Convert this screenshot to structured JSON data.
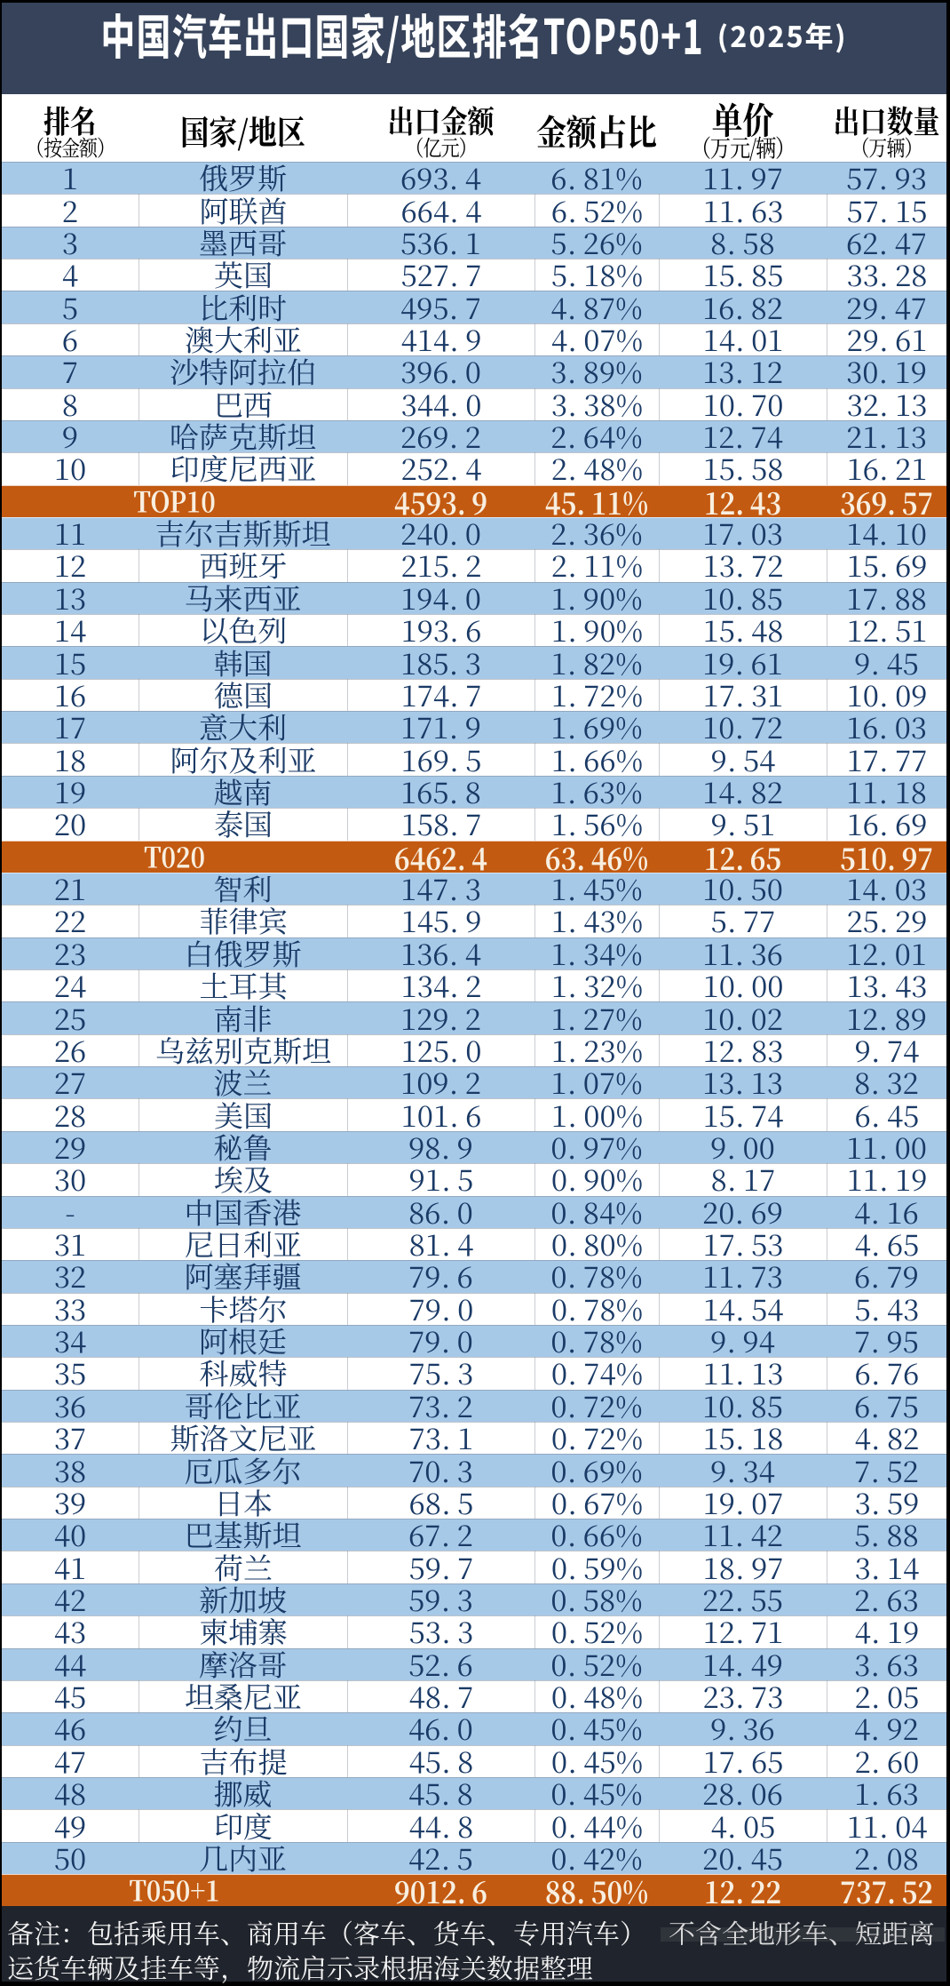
{
  "title": {
    "main": "中国汽车出口国家/地区排名TOP50+1",
    "year_suffix": "(2025年)"
  },
  "header": {
    "columns": [
      {
        "label": "排名",
        "sub": "（按金额）"
      },
      {
        "label": "国家/地区",
        "sub": ""
      },
      {
        "label": "出口金额",
        "sub": "（亿元）"
      },
      {
        "label": "金额占比",
        "sub": ""
      },
      {
        "label": "单价",
        "sub": "（万元/辆）"
      },
      {
        "label": "出口数量",
        "sub": "（万辆）"
      }
    ]
  },
  "rows": [
    {
      "type": "data",
      "rank": "1",
      "country": "俄罗斯",
      "amount": "693.4",
      "share": "6.81%",
      "price": "11.97",
      "qty": "57.93"
    },
    {
      "type": "data",
      "rank": "2",
      "country": "阿联酋",
      "amount": "664.4",
      "share": "6.52%",
      "price": "11.63",
      "qty": "57.15"
    },
    {
      "type": "data",
      "rank": "3",
      "country": "墨西哥",
      "amount": "536.1",
      "share": "5.26%",
      "price": "8.58",
      "qty": "62.47"
    },
    {
      "type": "data",
      "rank": "4",
      "country": "英国",
      "amount": "527.7",
      "share": "5.18%",
      "price": "15.85",
      "qty": "33.28"
    },
    {
      "type": "data",
      "rank": "5",
      "country": "比利时",
      "amount": "495.7",
      "share": "4.87%",
      "price": "16.82",
      "qty": "29.47"
    },
    {
      "type": "data",
      "rank": "6",
      "country": "澳大利亚",
      "amount": "414.9",
      "share": "4.07%",
      "price": "14.01",
      "qty": "29.61"
    },
    {
      "type": "data",
      "rank": "7",
      "country": "沙特阿拉伯",
      "amount": "396.0",
      "share": "3.89%",
      "price": "13.12",
      "qty": "30.19"
    },
    {
      "type": "data",
      "rank": "8",
      "country": "巴西",
      "amount": "344.0",
      "share": "3.38%",
      "price": "10.70",
      "qty": "32.13"
    },
    {
      "type": "data",
      "rank": "9",
      "country": "哈萨克斯坦",
      "amount": "269.2",
      "share": "2.64%",
      "price": "12.74",
      "qty": "21.13"
    },
    {
      "type": "data",
      "rank": "10",
      "country": "印度尼西亚",
      "amount": "252.4",
      "share": "2.48%",
      "price": "15.58",
      "qty": "16.21"
    },
    {
      "type": "summary",
      "label": "TOP10",
      "amount": "4593.9",
      "share": "45.11%",
      "price": "12.43",
      "qty": "369.57"
    },
    {
      "type": "data",
      "rank": "11",
      "country": "吉尔吉斯斯坦",
      "amount": "240.0",
      "share": "2.36%",
      "price": "17.03",
      "qty": "14.10"
    },
    {
      "type": "data",
      "rank": "12",
      "country": "西班牙",
      "amount": "215.2",
      "share": "2.11%",
      "price": "13.72",
      "qty": "15.69"
    },
    {
      "type": "data",
      "rank": "13",
      "country": "马来西亚",
      "amount": "194.0",
      "share": "1.90%",
      "price": "10.85",
      "qty": "17.88"
    },
    {
      "type": "data",
      "rank": "14",
      "country": "以色列",
      "amount": "193.6",
      "share": "1.90%",
      "price": "15.48",
      "qty": "12.51"
    },
    {
      "type": "data",
      "rank": "15",
      "country": "韩国",
      "amount": "185.3",
      "share": "1.82%",
      "price": "19.61",
      "qty": "9.45"
    },
    {
      "type": "data",
      "rank": "16",
      "country": "德国",
      "amount": "174.7",
      "share": "1.72%",
      "price": "17.31",
      "qty": "10.09"
    },
    {
      "type": "data",
      "rank": "17",
      "country": "意大利",
      "amount": "171.9",
      "share": "1.69%",
      "price": "10.72",
      "qty": "16.03"
    },
    {
      "type": "data",
      "rank": "18",
      "country": "阿尔及利亚",
      "amount": "169.5",
      "share": "1.66%",
      "price": "9.54",
      "qty": "17.77"
    },
    {
      "type": "data",
      "rank": "19",
      "country": "越南",
      "amount": "165.8",
      "share": "1.63%",
      "price": "14.82",
      "qty": "11.18"
    },
    {
      "type": "data",
      "rank": "20",
      "country": "泰国",
      "amount": "158.7",
      "share": "1.56%",
      "price": "9.51",
      "qty": "16.69"
    },
    {
      "type": "summary",
      "label": "T020",
      "amount": "6462.4",
      "share": "63.46%",
      "price": "12.65",
      "qty": "510.97"
    },
    {
      "type": "data",
      "rank": "21",
      "country": "智利",
      "amount": "147.3",
      "share": "1.45%",
      "price": "10.50",
      "qty": "14.03"
    },
    {
      "type": "data",
      "rank": "22",
      "country": "菲律宾",
      "amount": "145.9",
      "share": "1.43%",
      "price": "5.77",
      "qty": "25.29"
    },
    {
      "type": "data",
      "rank": "23",
      "country": "白俄罗斯",
      "amount": "136.4",
      "share": "1.34%",
      "price": "11.36",
      "qty": "12.01"
    },
    {
      "type": "data",
      "rank": "24",
      "country": "土耳其",
      "amount": "134.2",
      "share": "1.32%",
      "price": "10.00",
      "qty": "13.43"
    },
    {
      "type": "data",
      "rank": "25",
      "country": "南非",
      "amount": "129.2",
      "share": "1.27%",
      "price": "10.02",
      "qty": "12.89"
    },
    {
      "type": "data",
      "rank": "26",
      "country": "乌兹别克斯坦",
      "amount": "125.0",
      "share": "1.23%",
      "price": "12.83",
      "qty": "9.74"
    },
    {
      "type": "data",
      "rank": "27",
      "country": "波兰",
      "amount": "109.2",
      "share": "1.07%",
      "price": "13.13",
      "qty": "8.32"
    },
    {
      "type": "data",
      "rank": "28",
      "country": "美国",
      "amount": "101.6",
      "share": "1.00%",
      "price": "15.74",
      "qty": "6.45"
    },
    {
      "type": "data",
      "rank": "29",
      "country": "秘鲁",
      "amount": "98.9",
      "share": "0.97%",
      "price": "9.00",
      "qty": "11.00"
    },
    {
      "type": "data",
      "rank": "30",
      "country": "埃及",
      "amount": "91.5",
      "share": "0.90%",
      "price": "8.17",
      "qty": "11.19"
    },
    {
      "type": "data",
      "rank": "-",
      "country": "中国香港",
      "amount": "86.0",
      "share": "0.84%",
      "price": "20.69",
      "qty": "4.16"
    },
    {
      "type": "data",
      "rank": "31",
      "country": "尼日利亚",
      "amount": "81.4",
      "share": "0.80%",
      "price": "17.53",
      "qty": "4.65"
    },
    {
      "type": "data",
      "rank": "32",
      "country": "阿塞拜疆",
      "amount": "79.6",
      "share": "0.78%",
      "price": "11.73",
      "qty": "6.79"
    },
    {
      "type": "data",
      "rank": "33",
      "country": "卡塔尔",
      "amount": "79.0",
      "share": "0.78%",
      "price": "14.54",
      "qty": "5.43"
    },
    {
      "type": "data",
      "rank": "34",
      "country": "阿根廷",
      "amount": "79.0",
      "share": "0.78%",
      "price": "9.94",
      "qty": "7.95"
    },
    {
      "type": "data",
      "rank": "35",
      "country": "科威特",
      "amount": "75.3",
      "share": "0.74%",
      "price": "11.13",
      "qty": "6.76"
    },
    {
      "type": "data",
      "rank": "36",
      "country": "哥伦比亚",
      "amount": "73.2",
      "share": "0.72%",
      "price": "10.85",
      "qty": "6.75"
    },
    {
      "type": "data",
      "rank": "37",
      "country": "斯洛文尼亚",
      "amount": "73.1",
      "share": "0.72%",
      "price": "15.18",
      "qty": "4.82"
    },
    {
      "type": "data",
      "rank": "38",
      "country": "厄瓜多尔",
      "amount": "70.3",
      "share": "0.69%",
      "price": "9.34",
      "qty": "7.52"
    },
    {
      "type": "data",
      "rank": "39",
      "country": "日本",
      "amount": "68.5",
      "share": "0.67%",
      "price": "19.07",
      "qty": "3.59"
    },
    {
      "type": "data",
      "rank": "40",
      "country": "巴基斯坦",
      "amount": "67.2",
      "share": "0.66%",
      "price": "11.42",
      "qty": "5.88"
    },
    {
      "type": "data",
      "rank": "41",
      "country": "荷兰",
      "amount": "59.7",
      "share": "0.59%",
      "price": "18.97",
      "qty": "3.14"
    },
    {
      "type": "data",
      "rank": "42",
      "country": "新加坡",
      "amount": "59.3",
      "share": "0.58%",
      "price": "22.55",
      "qty": "2.63"
    },
    {
      "type": "data",
      "rank": "43",
      "country": "柬埔寨",
      "amount": "53.3",
      "share": "0.52%",
      "price": "12.71",
      "qty": "4.19"
    },
    {
      "type": "data",
      "rank": "44",
      "country": "摩洛哥",
      "amount": "52.6",
      "share": "0.52%",
      "price": "14.49",
      "qty": "3.63"
    },
    {
      "type": "data",
      "rank": "45",
      "country": "坦桑尼亚",
      "amount": "48.7",
      "share": "0.48%",
      "price": "23.73",
      "qty": "2.05"
    },
    {
      "type": "data",
      "rank": "46",
      "country": "约旦",
      "amount": "46.0",
      "share": "0.45%",
      "price": "9.36",
      "qty": "4.92"
    },
    {
      "type": "data",
      "rank": "47",
      "country": "吉布提",
      "amount": "45.8",
      "share": "0.45%",
      "price": "17.65",
      "qty": "2.60"
    },
    {
      "type": "data",
      "rank": "48",
      "country": "挪威",
      "amount": "45.8",
      "share": "0.45%",
      "price": "28.06",
      "qty": "1.63"
    },
    {
      "type": "data",
      "rank": "49",
      "country": "印度",
      "amount": "44.8",
      "share": "0.44%",
      "price": "4.05",
      "qty": "11.04"
    },
    {
      "type": "data",
      "rank": "50",
      "country": "几内亚",
      "amount": "42.5",
      "share": "0.42%",
      "price": "20.45",
      "qty": "2.08"
    },
    {
      "type": "summary",
      "label": "T050+1",
      "amount": "9012.6",
      "share": "88.50%",
      "price": "12.22",
      "qty": "737.52"
    }
  ],
  "footer": {
    "line1_left": "备注：包括乘用车、商用车（客车、货车、专用汽车）",
    "line1_right": "不含全地形车、短距离",
    "line2": "运货车辆及挂车等，物流启示录根据海关数据整理"
  },
  "chart_data": {
    "type": "table",
    "title": "中国汽车出口国家/地区排名TOP50+1 (2025年)",
    "columns": [
      "排名（按金额）",
      "国家/地区",
      "出口金额（亿元）",
      "金额占比",
      "单价（万元/辆）",
      "出口数量（万辆）"
    ],
    "rows": [
      [
        "1",
        "俄罗斯",
        "693.4",
        "6.81%",
        "11.97",
        "57.93"
      ],
      [
        "2",
        "阿联酋",
        "664.4",
        "6.52%",
        "11.63",
        "57.15"
      ],
      [
        "3",
        "墨西哥",
        "536.1",
        "5.26%",
        "8.58",
        "62.47"
      ],
      [
        "4",
        "英国",
        "527.7",
        "5.18%",
        "15.85",
        "33.28"
      ],
      [
        "5",
        "比利时",
        "495.7",
        "4.87%",
        "16.82",
        "29.47"
      ],
      [
        "6",
        "澳大利亚",
        "414.9",
        "4.07%",
        "14.01",
        "29.61"
      ],
      [
        "7",
        "沙特阿拉伯",
        "396.0",
        "3.89%",
        "13.12",
        "30.19"
      ],
      [
        "8",
        "巴西",
        "344.0",
        "3.38%",
        "10.70",
        "32.13"
      ],
      [
        "9",
        "哈萨克斯坦",
        "269.2",
        "2.64%",
        "12.74",
        "21.13"
      ],
      [
        "10",
        "印度尼西亚",
        "252.4",
        "2.48%",
        "15.58",
        "16.21"
      ],
      [
        "TOP10",
        "",
        "4593.9",
        "45.11%",
        "12.43",
        "369.57"
      ],
      [
        "11",
        "吉尔吉斯斯坦",
        "240.0",
        "2.36%",
        "17.03",
        "14.10"
      ],
      [
        "12",
        "西班牙",
        "215.2",
        "2.11%",
        "13.72",
        "15.69"
      ],
      [
        "13",
        "马来西亚",
        "194.0",
        "1.90%",
        "10.85",
        "17.88"
      ],
      [
        "14",
        "以色列",
        "193.6",
        "1.90%",
        "15.48",
        "12.51"
      ],
      [
        "15",
        "韩国",
        "185.3",
        "1.82%",
        "19.61",
        "9.45"
      ],
      [
        "16",
        "德国",
        "174.7",
        "1.72%",
        "17.31",
        "10.09"
      ],
      [
        "17",
        "意大利",
        "171.9",
        "1.69%",
        "10.72",
        "16.03"
      ],
      [
        "18",
        "阿尔及利亚",
        "169.5",
        "1.66%",
        "9.54",
        "17.77"
      ],
      [
        "19",
        "越南",
        "165.8",
        "1.63%",
        "14.82",
        "11.18"
      ],
      [
        "20",
        "泰国",
        "158.7",
        "1.56%",
        "9.51",
        "16.69"
      ],
      [
        "T020",
        "",
        "6462.4",
        "63.46%",
        "12.65",
        "510.97"
      ],
      [
        "21",
        "智利",
        "147.3",
        "1.45%",
        "10.50",
        "14.03"
      ],
      [
        "22",
        "菲律宾",
        "145.9",
        "1.43%",
        "5.77",
        "25.29"
      ],
      [
        "23",
        "白俄罗斯",
        "136.4",
        "1.34%",
        "11.36",
        "12.01"
      ],
      [
        "24",
        "土耳其",
        "134.2",
        "1.32%",
        "10.00",
        "13.43"
      ],
      [
        "25",
        "南非",
        "129.2",
        "1.27%",
        "10.02",
        "12.89"
      ],
      [
        "26",
        "乌兹别克斯坦",
        "125.0",
        "1.23%",
        "12.83",
        "9.74"
      ],
      [
        "27",
        "波兰",
        "109.2",
        "1.07%",
        "13.13",
        "8.32"
      ],
      [
        "28",
        "美国",
        "101.6",
        "1.00%",
        "15.74",
        "6.45"
      ],
      [
        "29",
        "秘鲁",
        "98.9",
        "0.97%",
        "9.00",
        "11.00"
      ],
      [
        "30",
        "埃及",
        "91.5",
        "0.90%",
        "8.17",
        "11.19"
      ],
      [
        "-",
        "中国香港",
        "86.0",
        "0.84%",
        "20.69",
        "4.16"
      ],
      [
        "31",
        "尼日利亚",
        "81.4",
        "0.80%",
        "17.53",
        "4.65"
      ],
      [
        "32",
        "阿塞拜疆",
        "79.6",
        "0.78%",
        "11.73",
        "6.79"
      ],
      [
        "33",
        "卡塔尔",
        "79.0",
        "0.78%",
        "14.54",
        "5.43"
      ],
      [
        "34",
        "阿根廷",
        "79.0",
        "0.78%",
        "9.94",
        "7.95"
      ],
      [
        "35",
        "科威特",
        "75.3",
        "0.74%",
        "11.13",
        "6.76"
      ],
      [
        "36",
        "哥伦比亚",
        "73.2",
        "0.72%",
        "10.85",
        "6.75"
      ],
      [
        "37",
        "斯洛文尼亚",
        "73.1",
        "0.72%",
        "15.18",
        "4.82"
      ],
      [
        "38",
        "厄瓜多尔",
        "70.3",
        "0.69%",
        "9.34",
        "7.52"
      ],
      [
        "39",
        "日本",
        "68.5",
        "0.67%",
        "19.07",
        "3.59"
      ],
      [
        "40",
        "巴基斯坦",
        "67.2",
        "0.66%",
        "11.42",
        "5.88"
      ],
      [
        "41",
        "荷兰",
        "59.7",
        "0.59%",
        "18.97",
        "3.14"
      ],
      [
        "42",
        "新加坡",
        "59.3",
        "0.58%",
        "22.55",
        "2.63"
      ],
      [
        "43",
        "柬埔寨",
        "53.3",
        "0.52%",
        "12.71",
        "4.19"
      ],
      [
        "44",
        "摩洛哥",
        "52.6",
        "0.52%",
        "14.49",
        "3.63"
      ],
      [
        "45",
        "坦桑尼亚",
        "48.7",
        "0.48%",
        "23.73",
        "2.05"
      ],
      [
        "46",
        "约旦",
        "46.0",
        "0.45%",
        "9.36",
        "4.92"
      ],
      [
        "47",
        "吉布提",
        "45.8",
        "0.45%",
        "17.65",
        "2.60"
      ],
      [
        "48",
        "挪威",
        "45.8",
        "0.45%",
        "28.06",
        "1.63"
      ],
      [
        "49",
        "印度",
        "44.8",
        "0.44%",
        "4.05",
        "11.04"
      ],
      [
        "50",
        "几内亚",
        "42.5",
        "0.42%",
        "20.45",
        "2.08"
      ],
      [
        "T050+1",
        "",
        "9012.6",
        "88.50%",
        "12.22",
        "737.52"
      ]
    ]
  },
  "colors": {
    "title_bg": "#36435A",
    "header_bg": "#FFFFFF",
    "row_blue": "#A7C9E8",
    "row_white": "#FFFFFF",
    "summary_bg": "#C35A11",
    "summary_fg": "#FAEDDA",
    "row_fg": "#1A3A66",
    "footer_bg": "#20242C",
    "frame": "#000000"
  }
}
